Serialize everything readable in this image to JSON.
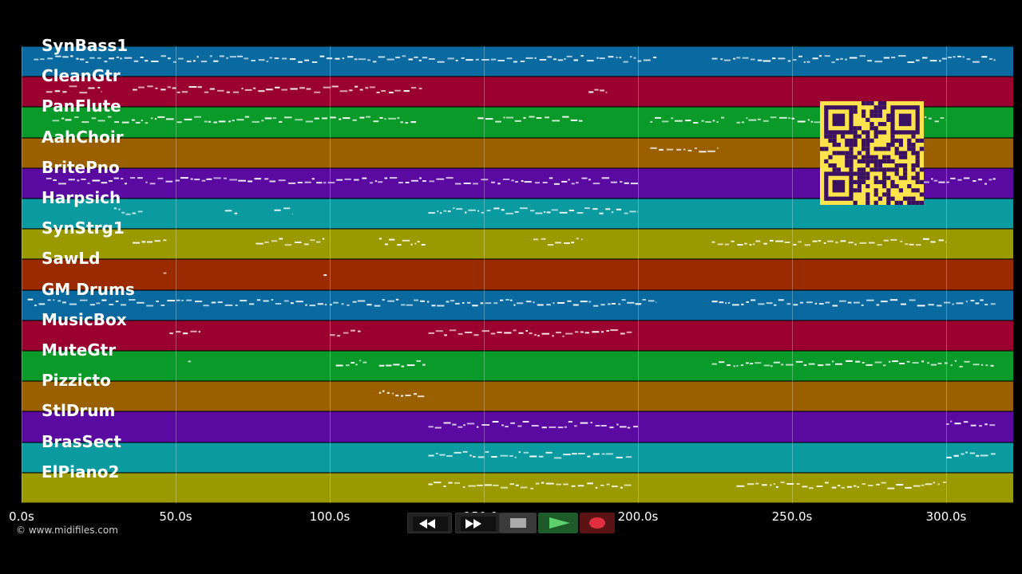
{
  "tracks": [
    {
      "name": "SynBass1",
      "color": "#0a6aa0"
    },
    {
      "name": "CleanGtr",
      "color": "#9a0030"
    },
    {
      "name": "PanFlute",
      "color": "#0a9a2a"
    },
    {
      "name": "AahChoir",
      "color": "#9a6000"
    },
    {
      "name": "BritePno",
      "color": "#5a0aa0"
    },
    {
      "name": "Harpsich",
      "color": "#0a9aa0"
    },
    {
      "name": "SynStrg1",
      "color": "#9a9a00"
    },
    {
      "name": "SawLd",
      "color": "#9a2a00"
    },
    {
      "name": "GM Drums",
      "color": "#0a6aa0"
    },
    {
      "name": "MusicBox",
      "color": "#9a0030"
    },
    {
      "name": "MuteGtr",
      "color": "#0a9a2a"
    },
    {
      "name": "Pizzicto",
      "color": "#9a6000"
    },
    {
      "name": "StlDrum",
      "color": "#5a0aa0"
    },
    {
      "name": "BrasSect",
      "color": "#0a9aa0"
    },
    {
      "name": "ElPiano2",
      "color": "#9a9a00"
    }
  ],
  "time_axis": {
    "ticks": [
      {
        "value": 0,
        "label": "0.0s"
      },
      {
        "value": 50,
        "label": "50.0s"
      },
      {
        "value": 100,
        "label": "100.0s"
      },
      {
        "value": 150,
        "label": "150.0s"
      },
      {
        "value": 200,
        "label": "200.0s"
      },
      {
        "value": 250,
        "label": "250.0s"
      },
      {
        "value": 300,
        "label": "300.0s"
      }
    ],
    "max_seconds": 322
  },
  "note_regions": [
    [
      [
        4,
        206
      ],
      [
        224,
        316
      ]
    ],
    [
      [
        8,
        26
      ],
      [
        36,
        130
      ],
      [
        184,
        190
      ]
    ],
    [
      [
        10,
        128
      ],
      [
        148,
        182
      ],
      [
        204,
        228
      ],
      [
        232,
        300
      ]
    ],
    [
      [
        204,
        226
      ]
    ],
    [
      [
        8,
        200
      ],
      [
        292,
        316
      ]
    ],
    [
      [
        30,
        40
      ],
      [
        66,
        70
      ],
      [
        82,
        88
      ],
      [
        132,
        200
      ]
    ],
    [
      [
        36,
        47
      ],
      [
        76,
        99
      ],
      [
        116,
        131
      ],
      [
        166,
        182
      ],
      [
        224,
        300
      ]
    ],
    [
      [
        46,
        47
      ],
      [
        98,
        99
      ]
    ],
    [
      [
        2,
        206
      ],
      [
        224,
        316
      ]
    ],
    [
      [
        48,
        58
      ],
      [
        100,
        110
      ],
      [
        132,
        198
      ]
    ],
    [
      [
        54,
        55
      ],
      [
        102,
        112
      ],
      [
        116,
        131
      ],
      [
        224,
        316
      ]
    ],
    [
      [
        116,
        131
      ]
    ],
    [
      [
        132,
        200
      ],
      [
        300,
        316
      ]
    ],
    [
      [
        132,
        198
      ],
      [
        300,
        316
      ]
    ],
    [
      [
        132,
        198
      ],
      [
        232,
        300
      ]
    ]
  ],
  "copyright": "© www.midifiles.com",
  "transport": {
    "rewind": "rewind-icon",
    "fast_forward": "fast-forward-icon",
    "stop": "stop-icon",
    "play": "play-icon",
    "record": "record-icon"
  },
  "colors": {
    "background": "#000000",
    "qr_background": "#ffe34d",
    "qr_foreground": "#3a1060"
  }
}
